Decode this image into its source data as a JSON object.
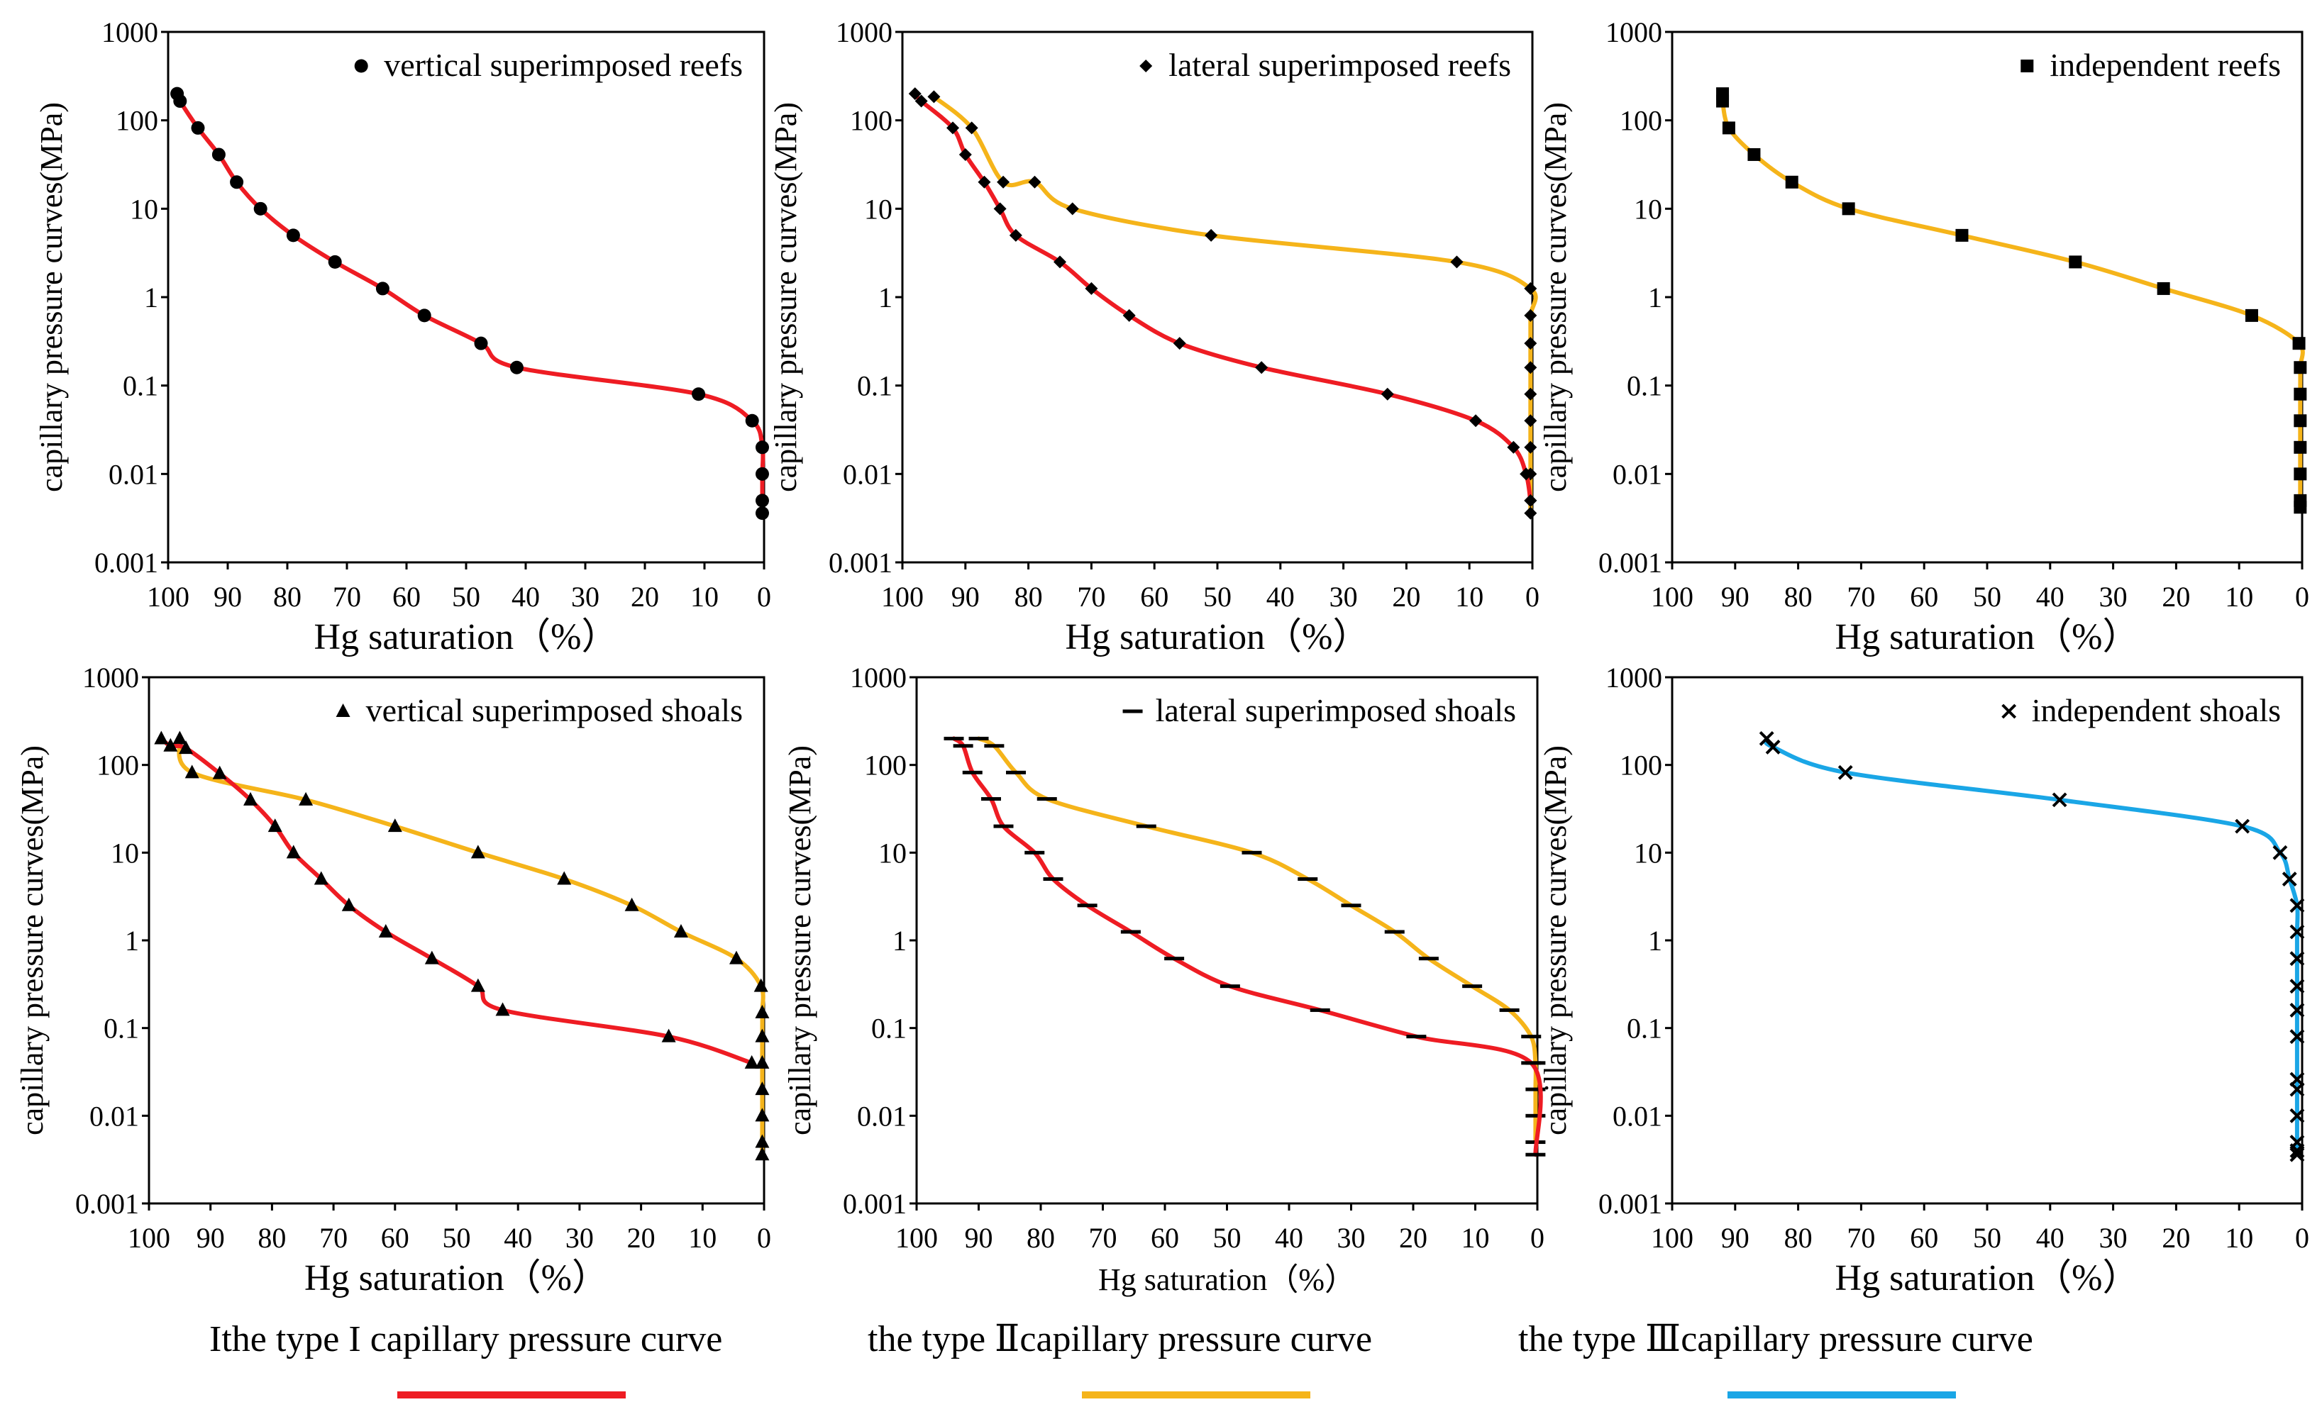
{
  "colors": {
    "type1": "#ee1c23",
    "type2": "#f5b41a",
    "type3": "#1aa6e6",
    "axis": "#000000"
  },
  "axes": {
    "y_label": "capillary pressure curves(MPa)",
    "x_label": "Hg saturation（%）",
    "y_ticks": [
      "1000",
      "100",
      "10",
      "1",
      "0.1",
      "0.01",
      "0.001"
    ],
    "x_ticks": [
      "100",
      "90",
      "80",
      "70",
      "60",
      "50",
      "40",
      "30",
      "20",
      "10",
      "0"
    ]
  },
  "legend_footer": [
    {
      "label": "Ithe type I capillary pressure curve",
      "color": "#ee1c23"
    },
    {
      "label": "the type Ⅱcapillary pressure curve",
      "color": "#f5b41a"
    },
    {
      "label": "the type Ⅲcapillary pressure curve",
      "color": "#1aa6e6"
    }
  ],
  "chart_data": [
    {
      "type": "scatter",
      "title": "vertical superimposed reefs",
      "marker": "circle",
      "xlabel": "Hg saturation（%）",
      "ylabel": "capillary pressure curves(MPa)",
      "xlim": [
        100,
        0
      ],
      "ylim": [
        0.001,
        1000
      ],
      "yscale": "log",
      "series": [
        {
          "name": "type I",
          "curve": "type1",
          "x": [
            98.5,
            98,
            95,
            91.5,
            88.5,
            84.5,
            79,
            72,
            64,
            57,
            47.5,
            41.5,
            11,
            2,
            0.3,
            0.3,
            0.3,
            0.3
          ],
          "y": [
            200,
            165,
            82,
            41,
            20,
            10,
            5,
            2.5,
            1.25,
            0.62,
            0.3,
            0.16,
            0.08,
            0.04,
            0.02,
            0.01,
            0.005,
            0.0036
          ]
        }
      ]
    },
    {
      "type": "scatter",
      "title": "lateral superimposed reefs",
      "marker": "diamond",
      "xlabel": "Hg saturation（%）",
      "ylabel": "capillary pressure curves(MPa)",
      "xlim": [
        100,
        0
      ],
      "ylim": [
        0.001,
        1000
      ],
      "yscale": "log",
      "series": [
        {
          "name": "type II",
          "curve": "type2",
          "x": [
            95,
            89,
            84,
            79,
            73,
            51,
            12,
            0.3,
            0.3,
            0.3,
            0.3,
            0.3,
            0.3,
            0.3,
            0.3,
            0.3,
            0.3
          ],
          "y": [
            185,
            82,
            20,
            20,
            10,
            5,
            2.5,
            1.25,
            0.62,
            0.3,
            0.16,
            0.08,
            0.04,
            0.02,
            0.01,
            0.005,
            0.0036
          ]
        },
        {
          "name": "type I",
          "curve": "type1",
          "x": [
            98,
            97,
            92,
            90,
            87,
            84.5,
            82,
            75,
            70,
            64,
            56,
            43,
            23,
            9,
            3,
            1,
            0.3
          ],
          "y": [
            200,
            165,
            82,
            41,
            20,
            10,
            5,
            2.5,
            1.25,
            0.62,
            0.3,
            0.16,
            0.08,
            0.04,
            0.02,
            0.01,
            0.005
          ]
        }
      ]
    },
    {
      "type": "scatter",
      "title": "independent reefs",
      "marker": "square",
      "xlabel": "Hg saturation（%）",
      "ylabel": "capillary pressure curves(MPa)",
      "xlim": [
        100,
        0
      ],
      "ylim": [
        0.001,
        1000
      ],
      "yscale": "log",
      "series": [
        {
          "name": "type II",
          "curve": "type2",
          "x": [
            92,
            92,
            91,
            87,
            81,
            72,
            54,
            36,
            22,
            8,
            0.5,
            0.3,
            0.3,
            0.3,
            0.3,
            0.3,
            0.3,
            0.3
          ],
          "y": [
            200,
            165,
            82,
            41,
            20,
            10,
            5,
            2.5,
            1.25,
            0.62,
            0.3,
            0.16,
            0.08,
            0.04,
            0.02,
            0.01,
            0.005,
            0.0042
          ]
        }
      ]
    },
    {
      "type": "scatter",
      "title": "vertical superimposed shoals",
      "marker": "triangle",
      "xlabel": "Hg saturation（%）",
      "ylabel": "capillary pressure curves(MPa)",
      "xlim": [
        100,
        0
      ],
      "ylim": [
        0.001,
        1000
      ],
      "yscale": "log",
      "series": [
        {
          "name": "type II",
          "curve": "type2",
          "x": [
            95,
            93,
            74.5,
            60,
            46.5,
            32.5,
            21.5,
            13.5,
            4.5,
            0.5,
            0.3,
            0.3,
            0.3,
            0.3,
            0.3,
            0.3,
            0.3
          ],
          "y": [
            200,
            82,
            40,
            20,
            10,
            5,
            2.5,
            1.25,
            0.62,
            0.3,
            0.15,
            0.08,
            0.04,
            0.02,
            0.01,
            0.005,
            0.0036
          ]
        },
        {
          "name": "type I",
          "curve": "type1",
          "x": [
            98,
            96.5,
            94,
            88.5,
            83.5,
            79.5,
            76.5,
            72,
            67.5,
            61.5,
            54,
            46.5,
            42.5,
            15.5,
            2
          ],
          "y": [
            200,
            165,
            155,
            80,
            40,
            20,
            10,
            5,
            2.5,
            1.25,
            0.62,
            0.3,
            0.16,
            0.08,
            0.04
          ]
        }
      ]
    },
    {
      "type": "scatter",
      "title": "lateral superimposed shoals",
      "marker": "dash",
      "xlabel": "Hg saturation（%）",
      "ylabel": "capillary pressure curves(MPa)",
      "xlim": [
        100,
        0
      ],
      "ylim": [
        0.001,
        1000
      ],
      "yscale": "log",
      "series": [
        {
          "name": "type II",
          "curve": "type2",
          "x": [
            90,
            87.5,
            84,
            79,
            63,
            46,
            37,
            30,
            23,
            17.5,
            10.5,
            4.5,
            1,
            0.3,
            0.3,
            0.3,
            0.3
          ],
          "y": [
            200,
            165,
            82,
            41,
            20,
            10,
            5,
            2.5,
            1.25,
            0.62,
            0.3,
            0.16,
            0.08,
            0.04,
            0.02,
            0.01,
            0.005
          ]
        },
        {
          "name": "type I",
          "curve": "type1",
          "x": [
            94,
            92.5,
            91,
            88,
            86,
            81,
            78,
            72.5,
            65.5,
            58.5,
            49.5,
            35,
            19.5,
            1,
            0.3
          ],
          "y": [
            200,
            165,
            82,
            41,
            20,
            10,
            5,
            2.5,
            1.25,
            0.62,
            0.3,
            0.16,
            0.08,
            0.04,
            0.0036
          ]
        }
      ]
    },
    {
      "type": "scatter",
      "title": "independent shoals",
      "marker": "x",
      "xlabel": "Hg saturation（%）",
      "ylabel": "capillary pressure curves(MPa)",
      "xlim": [
        100,
        0
      ],
      "ylim": [
        0.001,
        1000
      ],
      "yscale": "log",
      "series": [
        {
          "name": "type III",
          "curve": "type3",
          "x": [
            85,
            84,
            72.5,
            38.5,
            9.5,
            3.5,
            2,
            0.8,
            0.8,
            0.8,
            0.8,
            0.8,
            0.8,
            0.8,
            0.8,
            0.8,
            0.8,
            0.8,
            0.8
          ],
          "y": [
            200,
            160,
            82,
            40,
            20,
            10,
            5,
            2.5,
            1.25,
            0.62,
            0.3,
            0.16,
            0.08,
            0.026,
            0.02,
            0.01,
            0.005,
            0.004,
            0.0036
          ]
        }
      ]
    }
  ]
}
